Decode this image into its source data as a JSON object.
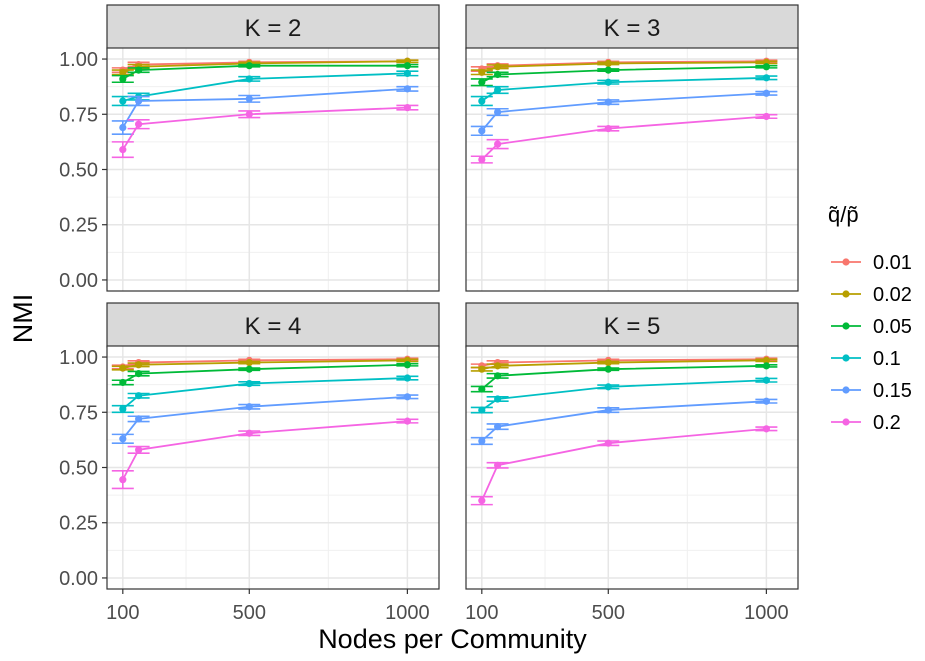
{
  "chart_data": {
    "type": "line",
    "xlabel": "Nodes per Community",
    "ylabel": "NMI",
    "x_ticks": [
      100,
      500,
      1000
    ],
    "y_ticks": [
      0.0,
      0.25,
      0.5,
      0.75,
      1.0
    ],
    "y_tick_labels": [
      "0.00",
      "0.25",
      "0.50",
      "0.75",
      "1.00"
    ],
    "xlim": [
      50,
      1100
    ],
    "ylim": [
      -0.05,
      1.05
    ],
    "grid": true,
    "legend": {
      "title": "q̃/p̃",
      "placement": "right",
      "entries": [
        "0.01",
        "0.02",
        "0.05",
        "0.1",
        "0.15",
        "0.2"
      ]
    },
    "x": [
      100,
      150,
      500,
      1000
    ],
    "colors": [
      "#F8766D",
      "#B79F00",
      "#00BA38",
      "#00BFC4",
      "#619CFF",
      "#F564E3"
    ],
    "panels": [
      {
        "label": "K = 2",
        "series": [
          {
            "name": "0.01",
            "values": [
              0.95,
              0.975,
              0.985,
              0.99
            ],
            "err": [
              0.01,
              0.01,
              0.005,
              0.005
            ]
          },
          {
            "name": "0.02",
            "values": [
              0.94,
              0.965,
              0.98,
              0.99
            ],
            "err": [
              0.01,
              0.01,
              0.005,
              0.005
            ]
          },
          {
            "name": "0.05",
            "values": [
              0.91,
              0.95,
              0.97,
              0.97
            ],
            "err": [
              0.015,
              0.01,
              0.005,
              0.005
            ]
          },
          {
            "name": "0.1",
            "values": [
              0.81,
              0.83,
              0.91,
              0.935
            ],
            "err": [
              0.02,
              0.015,
              0.01,
              0.01
            ]
          },
          {
            "name": "0.15",
            "values": [
              0.69,
              0.81,
              0.82,
              0.865
            ],
            "err": [
              0.03,
              0.02,
              0.015,
              0.01
            ]
          },
          {
            "name": "0.2",
            "values": [
              0.59,
              0.705,
              0.75,
              0.78
            ],
            "err": [
              0.035,
              0.02,
              0.015,
              0.01
            ]
          }
        ]
      },
      {
        "label": "K = 3",
        "series": [
          {
            "name": "0.01",
            "values": [
              0.955,
              0.97,
              0.985,
              0.99
            ],
            "err": [
              0.01,
              0.008,
              0.005,
              0.005
            ]
          },
          {
            "name": "0.02",
            "values": [
              0.94,
              0.965,
              0.98,
              0.985
            ],
            "err": [
              0.01,
              0.008,
              0.005,
              0.005
            ]
          },
          {
            "name": "0.05",
            "values": [
              0.895,
              0.93,
              0.95,
              0.965
            ],
            "err": [
              0.015,
              0.01,
              0.005,
              0.005
            ]
          },
          {
            "name": "0.1",
            "values": [
              0.81,
              0.86,
              0.895,
              0.915
            ],
            "err": [
              0.02,
              0.015,
              0.008,
              0.008
            ]
          },
          {
            "name": "0.15",
            "values": [
              0.675,
              0.76,
              0.805,
              0.845
            ],
            "err": [
              0.02,
              0.015,
              0.01,
              0.008
            ]
          },
          {
            "name": "0.2",
            "values": [
              0.545,
              0.615,
              0.685,
              0.74
            ],
            "err": [
              0.015,
              0.02,
              0.01,
              0.008
            ]
          }
        ]
      },
      {
        "label": "K = 4",
        "series": [
          {
            "name": "0.01",
            "values": [
              0.955,
              0.975,
              0.985,
              0.99
            ],
            "err": [
              0.008,
              0.008,
              0.005,
              0.005
            ]
          },
          {
            "name": "0.02",
            "values": [
              0.95,
              0.965,
              0.975,
              0.985
            ],
            "err": [
              0.008,
              0.008,
              0.005,
              0.005
            ]
          },
          {
            "name": "0.05",
            "values": [
              0.885,
              0.925,
              0.945,
              0.965
            ],
            "err": [
              0.01,
              0.01,
              0.005,
              0.005
            ]
          },
          {
            "name": "0.1",
            "values": [
              0.765,
              0.825,
              0.88,
              0.905
            ],
            "err": [
              0.015,
              0.01,
              0.008,
              0.008
            ]
          },
          {
            "name": "0.15",
            "values": [
              0.63,
              0.72,
              0.775,
              0.82
            ],
            "err": [
              0.02,
              0.012,
              0.01,
              0.008
            ]
          },
          {
            "name": "0.2",
            "values": [
              0.445,
              0.58,
              0.655,
              0.71
            ],
            "err": [
              0.04,
              0.015,
              0.01,
              0.008
            ]
          }
        ]
      },
      {
        "label": "K = 5",
        "series": [
          {
            "name": "0.01",
            "values": [
              0.96,
              0.975,
              0.985,
              0.99
            ],
            "err": [
              0.008,
              0.008,
              0.005,
              0.005
            ]
          },
          {
            "name": "0.02",
            "values": [
              0.945,
              0.96,
              0.975,
              0.985
            ],
            "err": [
              0.008,
              0.008,
              0.005,
              0.005
            ]
          },
          {
            "name": "0.05",
            "values": [
              0.855,
              0.915,
              0.945,
              0.96
            ],
            "err": [
              0.012,
              0.01,
              0.005,
              0.005
            ]
          },
          {
            "name": "0.1",
            "values": [
              0.76,
              0.81,
              0.865,
              0.895
            ],
            "err": [
              0.012,
              0.01,
              0.008,
              0.008
            ]
          },
          {
            "name": "0.15",
            "values": [
              0.62,
              0.685,
              0.76,
              0.8
            ],
            "err": [
              0.015,
              0.012,
              0.01,
              0.008
            ]
          },
          {
            "name": "0.2",
            "values": [
              0.35,
              0.51,
              0.61,
              0.675
            ],
            "err": [
              0.018,
              0.012,
              0.01,
              0.008
            ]
          }
        ]
      }
    ]
  }
}
